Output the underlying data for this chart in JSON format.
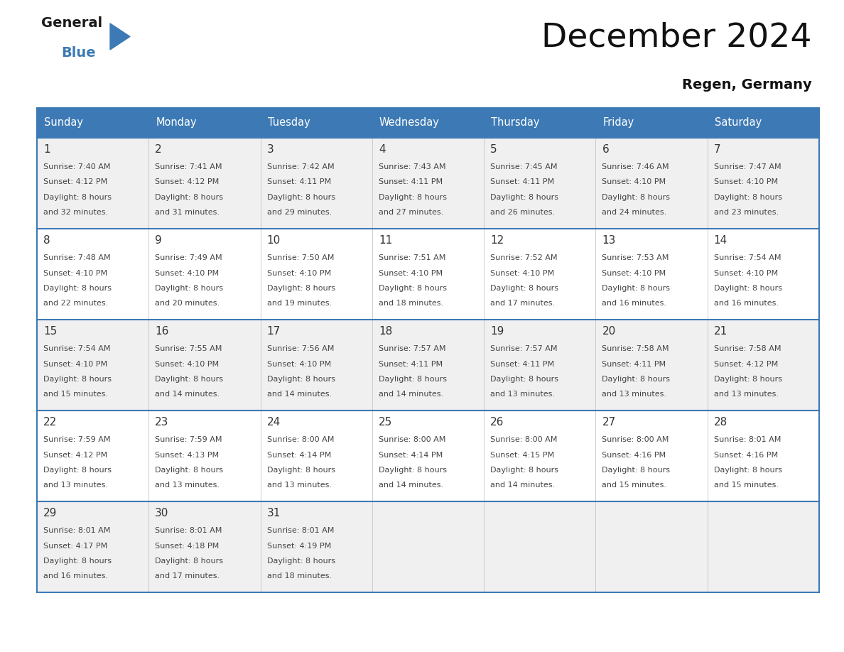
{
  "title": "December 2024",
  "subtitle": "Regen, Germany",
  "header_color": "#3d7ab5",
  "header_text_color": "#ffffff",
  "border_color": "#3d7ab5",
  "days_of_week": [
    "Sunday",
    "Monday",
    "Tuesday",
    "Wednesday",
    "Thursday",
    "Friday",
    "Saturday"
  ],
  "calendar_data": [
    [
      {
        "day": 1,
        "sunrise": "7:40 AM",
        "sunset": "4:12 PM",
        "daylight": "8 hours",
        "daylight2": "and 32 minutes."
      },
      {
        "day": 2,
        "sunrise": "7:41 AM",
        "sunset": "4:12 PM",
        "daylight": "8 hours",
        "daylight2": "and 31 minutes."
      },
      {
        "day": 3,
        "sunrise": "7:42 AM",
        "sunset": "4:11 PM",
        "daylight": "8 hours",
        "daylight2": "and 29 minutes."
      },
      {
        "day": 4,
        "sunrise": "7:43 AM",
        "sunset": "4:11 PM",
        "daylight": "8 hours",
        "daylight2": "and 27 minutes."
      },
      {
        "day": 5,
        "sunrise": "7:45 AM",
        "sunset": "4:11 PM",
        "daylight": "8 hours",
        "daylight2": "and 26 minutes."
      },
      {
        "day": 6,
        "sunrise": "7:46 AM",
        "sunset": "4:10 PM",
        "daylight": "8 hours",
        "daylight2": "and 24 minutes."
      },
      {
        "day": 7,
        "sunrise": "7:47 AM",
        "sunset": "4:10 PM",
        "daylight": "8 hours",
        "daylight2": "and 23 minutes."
      }
    ],
    [
      {
        "day": 8,
        "sunrise": "7:48 AM",
        "sunset": "4:10 PM",
        "daylight": "8 hours",
        "daylight2": "and 22 minutes."
      },
      {
        "day": 9,
        "sunrise": "7:49 AM",
        "sunset": "4:10 PM",
        "daylight": "8 hours",
        "daylight2": "and 20 minutes."
      },
      {
        "day": 10,
        "sunrise": "7:50 AM",
        "sunset": "4:10 PM",
        "daylight": "8 hours",
        "daylight2": "and 19 minutes."
      },
      {
        "day": 11,
        "sunrise": "7:51 AM",
        "sunset": "4:10 PM",
        "daylight": "8 hours",
        "daylight2": "and 18 minutes."
      },
      {
        "day": 12,
        "sunrise": "7:52 AM",
        "sunset": "4:10 PM",
        "daylight": "8 hours",
        "daylight2": "and 17 minutes."
      },
      {
        "day": 13,
        "sunrise": "7:53 AM",
        "sunset": "4:10 PM",
        "daylight": "8 hours",
        "daylight2": "and 16 minutes."
      },
      {
        "day": 14,
        "sunrise": "7:54 AM",
        "sunset": "4:10 PM",
        "daylight": "8 hours",
        "daylight2": "and 16 minutes."
      }
    ],
    [
      {
        "day": 15,
        "sunrise": "7:54 AM",
        "sunset": "4:10 PM",
        "daylight": "8 hours",
        "daylight2": "and 15 minutes."
      },
      {
        "day": 16,
        "sunrise": "7:55 AM",
        "sunset": "4:10 PM",
        "daylight": "8 hours",
        "daylight2": "and 14 minutes."
      },
      {
        "day": 17,
        "sunrise": "7:56 AM",
        "sunset": "4:10 PM",
        "daylight": "8 hours",
        "daylight2": "and 14 minutes."
      },
      {
        "day": 18,
        "sunrise": "7:57 AM",
        "sunset": "4:11 PM",
        "daylight": "8 hours",
        "daylight2": "and 14 minutes."
      },
      {
        "day": 19,
        "sunrise": "7:57 AM",
        "sunset": "4:11 PM",
        "daylight": "8 hours",
        "daylight2": "and 13 minutes."
      },
      {
        "day": 20,
        "sunrise": "7:58 AM",
        "sunset": "4:11 PM",
        "daylight": "8 hours",
        "daylight2": "and 13 minutes."
      },
      {
        "day": 21,
        "sunrise": "7:58 AM",
        "sunset": "4:12 PM",
        "daylight": "8 hours",
        "daylight2": "and 13 minutes."
      }
    ],
    [
      {
        "day": 22,
        "sunrise": "7:59 AM",
        "sunset": "4:12 PM",
        "daylight": "8 hours",
        "daylight2": "and 13 minutes."
      },
      {
        "day": 23,
        "sunrise": "7:59 AM",
        "sunset": "4:13 PM",
        "daylight": "8 hours",
        "daylight2": "and 13 minutes."
      },
      {
        "day": 24,
        "sunrise": "8:00 AM",
        "sunset": "4:14 PM",
        "daylight": "8 hours",
        "daylight2": "and 13 minutes."
      },
      {
        "day": 25,
        "sunrise": "8:00 AM",
        "sunset": "4:14 PM",
        "daylight": "8 hours",
        "daylight2": "and 14 minutes."
      },
      {
        "day": 26,
        "sunrise": "8:00 AM",
        "sunset": "4:15 PM",
        "daylight": "8 hours",
        "daylight2": "and 14 minutes."
      },
      {
        "day": 27,
        "sunrise": "8:00 AM",
        "sunset": "4:16 PM",
        "daylight": "8 hours",
        "daylight2": "and 15 minutes."
      },
      {
        "day": 28,
        "sunrise": "8:01 AM",
        "sunset": "4:16 PM",
        "daylight": "8 hours",
        "daylight2": "and 15 minutes."
      }
    ],
    [
      {
        "day": 29,
        "sunrise": "8:01 AM",
        "sunset": "4:17 PM",
        "daylight": "8 hours",
        "daylight2": "and 16 minutes."
      },
      {
        "day": 30,
        "sunrise": "8:01 AM",
        "sunset": "4:18 PM",
        "daylight": "8 hours",
        "daylight2": "and 17 minutes."
      },
      {
        "day": 31,
        "sunrise": "8:01 AM",
        "sunset": "4:19 PM",
        "daylight": "8 hours",
        "daylight2": "and 18 minutes."
      },
      null,
      null,
      null,
      null
    ]
  ],
  "logo_color_general": "#1a1a1a",
  "logo_color_blue": "#3d7ab5",
  "text_color": "#444444",
  "day_num_color": "#333333"
}
